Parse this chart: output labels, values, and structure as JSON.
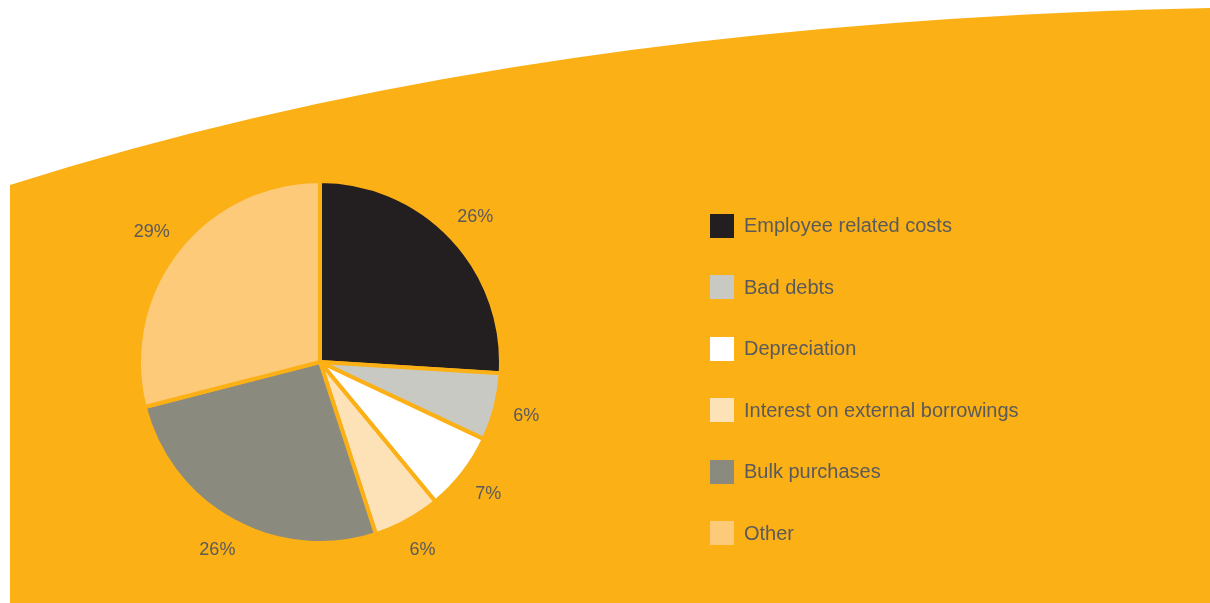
{
  "chart_data": {
    "type": "pie",
    "categories": [
      "Employee related costs",
      "Bad debts",
      "Depreciation",
      "Interest on external borrowings",
      "Bulk purchases",
      "Other"
    ],
    "values": [
      26,
      6,
      7,
      6,
      26,
      29
    ],
    "colors": [
      "#231f20",
      "#c9c9c3",
      "#ffffff",
      "#fde2b8",
      "#8a8a7e",
      "#fdca7a"
    ],
    "value_labels": [
      "26%",
      "6%",
      "7%",
      "6%",
      "26%",
      "29%"
    ],
    "legend": "right"
  }
}
